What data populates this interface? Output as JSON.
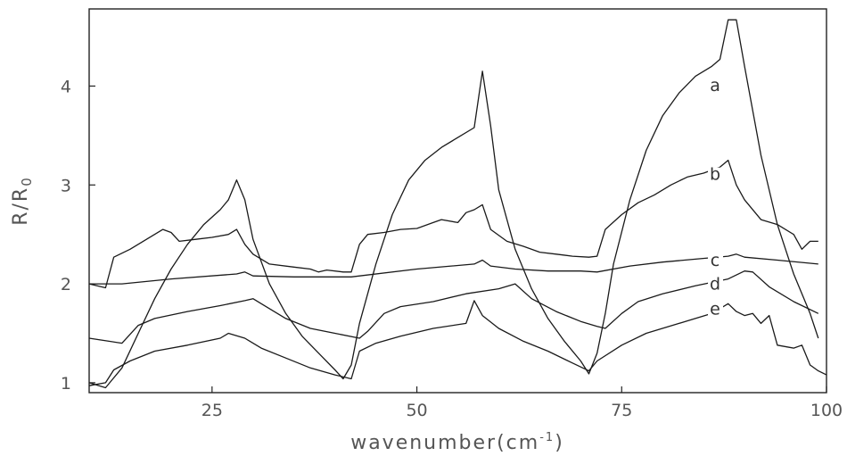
{
  "chart_data": {
    "type": "line",
    "xlabel": "wavenumber(cm",
    "xlabel_sup": "-1",
    "xlabel_tail": ")",
    "ylabel": "R/R",
    "ylabel_sub": "0",
    "xlim": [
      10,
      100
    ],
    "ylim": [
      0.9,
      4.78
    ],
    "x_ticks": [
      25,
      50,
      75,
      100
    ],
    "y_ticks": [
      1,
      2,
      3,
      4
    ],
    "grid": false,
    "legend": "none",
    "series": [
      {
        "name": "a",
        "points": [
          [
            10,
            1.0
          ],
          [
            12,
            0.95
          ],
          [
            14,
            1.15
          ],
          [
            16,
            1.5
          ],
          [
            18,
            1.85
          ],
          [
            20,
            2.15
          ],
          [
            22,
            2.4
          ],
          [
            24,
            2.6
          ],
          [
            26,
            2.75
          ],
          [
            27,
            2.85
          ],
          [
            28,
            3.05
          ],
          [
            29,
            2.85
          ],
          [
            30,
            2.45
          ],
          [
            32,
            2.0
          ],
          [
            34,
            1.7
          ],
          [
            36,
            1.47
          ],
          [
            38,
            1.3
          ],
          [
            40,
            1.13
          ],
          [
            41,
            1.04
          ],
          [
            42,
            1.18
          ],
          [
            43,
            1.6
          ],
          [
            45,
            2.2
          ],
          [
            47,
            2.7
          ],
          [
            49,
            3.05
          ],
          [
            51,
            3.25
          ],
          [
            53,
            3.38
          ],
          [
            55,
            3.48
          ],
          [
            57,
            3.58
          ],
          [
            58,
            4.15
          ],
          [
            59,
            3.6
          ],
          [
            60,
            2.95
          ],
          [
            62,
            2.35
          ],
          [
            64,
            1.95
          ],
          [
            66,
            1.65
          ],
          [
            68,
            1.42
          ],
          [
            70,
            1.22
          ],
          [
            71,
            1.09
          ],
          [
            72,
            1.3
          ],
          [
            73,
            1.7
          ],
          [
            74,
            2.2
          ],
          [
            76,
            2.85
          ],
          [
            78,
            3.35
          ],
          [
            80,
            3.7
          ],
          [
            82,
            3.93
          ],
          [
            84,
            4.1
          ],
          [
            86,
            4.2
          ],
          [
            87,
            4.27
          ],
          [
            88,
            4.67
          ],
          [
            89,
            4.67
          ],
          [
            90,
            4.2
          ],
          [
            92,
            3.3
          ],
          [
            94,
            2.6
          ],
          [
            96,
            2.1
          ],
          [
            98,
            1.7
          ],
          [
            99,
            1.45
          ]
        ]
      },
      {
        "name": "b",
        "points": [
          [
            10,
            2.0
          ],
          [
            12,
            1.96
          ],
          [
            13,
            2.27
          ],
          [
            15,
            2.35
          ],
          [
            17,
            2.45
          ],
          [
            19,
            2.55
          ],
          [
            20,
            2.52
          ],
          [
            21,
            2.43
          ],
          [
            23,
            2.45
          ],
          [
            25,
            2.47
          ],
          [
            27,
            2.5
          ],
          [
            28,
            2.55
          ],
          [
            29,
            2.4
          ],
          [
            30,
            2.3
          ],
          [
            32,
            2.2
          ],
          [
            35,
            2.17
          ],
          [
            37,
            2.15
          ],
          [
            38,
            2.12
          ],
          [
            39,
            2.14
          ],
          [
            41,
            2.12
          ],
          [
            42,
            2.12
          ],
          [
            43,
            2.4
          ],
          [
            44,
            2.5
          ],
          [
            46,
            2.52
          ],
          [
            48,
            2.55
          ],
          [
            50,
            2.56
          ],
          [
            52,
            2.62
          ],
          [
            53,
            2.65
          ],
          [
            55,
            2.62
          ],
          [
            56,
            2.72
          ],
          [
            57,
            2.75
          ],
          [
            58,
            2.8
          ],
          [
            59,
            2.55
          ],
          [
            61,
            2.43
          ],
          [
            63,
            2.38
          ],
          [
            65,
            2.32
          ],
          [
            67,
            2.3
          ],
          [
            69,
            2.28
          ],
          [
            71,
            2.27
          ],
          [
            72,
            2.28
          ],
          [
            73,
            2.55
          ],
          [
            75,
            2.7
          ],
          [
            77,
            2.82
          ],
          [
            79,
            2.9
          ],
          [
            81,
            3.0
          ],
          [
            83,
            3.08
          ],
          [
            85,
            3.12
          ],
          [
            87,
            3.18
          ],
          [
            88,
            3.25
          ],
          [
            89,
            3.0
          ],
          [
            90,
            2.85
          ],
          [
            92,
            2.65
          ],
          [
            94,
            2.6
          ],
          [
            96,
            2.5
          ],
          [
            97,
            2.35
          ],
          [
            98,
            2.43
          ],
          [
            99,
            2.43
          ]
        ]
      },
      {
        "name": "c",
        "points": [
          [
            10,
            2.0
          ],
          [
            14,
            2.0
          ],
          [
            20,
            2.05
          ],
          [
            28,
            2.1
          ],
          [
            29,
            2.12
          ],
          [
            30,
            2.08
          ],
          [
            35,
            2.07
          ],
          [
            42,
            2.07
          ],
          [
            50,
            2.15
          ],
          [
            57,
            2.2
          ],
          [
            58,
            2.24
          ],
          [
            59,
            2.18
          ],
          [
            62,
            2.15
          ],
          [
            66,
            2.13
          ],
          [
            70,
            2.13
          ],
          [
            72,
            2.12
          ],
          [
            76,
            2.18
          ],
          [
            80,
            2.22
          ],
          [
            84,
            2.25
          ],
          [
            88,
            2.28
          ],
          [
            89,
            2.3
          ],
          [
            90,
            2.27
          ],
          [
            94,
            2.24
          ],
          [
            99,
            2.2
          ]
        ]
      },
      {
        "name": "d",
        "points": [
          [
            10,
            1.45
          ],
          [
            14,
            1.4
          ],
          [
            16,
            1.58
          ],
          [
            18,
            1.65
          ],
          [
            22,
            1.72
          ],
          [
            26,
            1.78
          ],
          [
            29,
            1.83
          ],
          [
            30,
            1.85
          ],
          [
            31,
            1.8
          ],
          [
            34,
            1.65
          ],
          [
            37,
            1.55
          ],
          [
            40,
            1.5
          ],
          [
            43,
            1.45
          ],
          [
            44,
            1.52
          ],
          [
            46,
            1.7
          ],
          [
            48,
            1.77
          ],
          [
            52,
            1.82
          ],
          [
            56,
            1.9
          ],
          [
            60,
            1.95
          ],
          [
            62,
            2.0
          ],
          [
            64,
            1.85
          ],
          [
            67,
            1.72
          ],
          [
            70,
            1.62
          ],
          [
            72,
            1.57
          ],
          [
            73,
            1.55
          ],
          [
            75,
            1.7
          ],
          [
            77,
            1.82
          ],
          [
            80,
            1.9
          ],
          [
            84,
            1.98
          ],
          [
            88,
            2.05
          ],
          [
            90,
            2.13
          ],
          [
            91,
            2.12
          ],
          [
            93,
            1.97
          ],
          [
            96,
            1.82
          ],
          [
            99,
            1.7
          ]
        ]
      },
      {
        "name": "e",
        "points": [
          [
            10,
            0.97
          ],
          [
            12,
            1.0
          ],
          [
            13,
            1.13
          ],
          [
            15,
            1.22
          ],
          [
            18,
            1.32
          ],
          [
            22,
            1.38
          ],
          [
            26,
            1.45
          ],
          [
            27,
            1.5
          ],
          [
            29,
            1.45
          ],
          [
            31,
            1.35
          ],
          [
            34,
            1.25
          ],
          [
            37,
            1.15
          ],
          [
            40,
            1.08
          ],
          [
            42,
            1.04
          ],
          [
            43,
            1.32
          ],
          [
            45,
            1.4
          ],
          [
            48,
            1.47
          ],
          [
            52,
            1.55
          ],
          [
            56,
            1.6
          ],
          [
            57,
            1.83
          ],
          [
            58,
            1.68
          ],
          [
            60,
            1.55
          ],
          [
            63,
            1.42
          ],
          [
            66,
            1.32
          ],
          [
            69,
            1.2
          ],
          [
            71,
            1.12
          ],
          [
            72,
            1.22
          ],
          [
            75,
            1.38
          ],
          [
            78,
            1.5
          ],
          [
            82,
            1.6
          ],
          [
            86,
            1.7
          ],
          [
            88,
            1.8
          ],
          [
            89,
            1.72
          ],
          [
            90,
            1.68
          ],
          [
            91,
            1.7
          ],
          [
            92,
            1.6
          ],
          [
            93,
            1.68
          ],
          [
            94,
            1.38
          ],
          [
            96,
            1.35
          ],
          [
            97,
            1.38
          ],
          [
            98,
            1.18
          ],
          [
            99,
            1.12
          ],
          [
            100,
            1.08
          ]
        ]
      }
    ],
    "series_label_points": [
      {
        "name": "a",
        "x": 86.4,
        "y": 3.95
      },
      {
        "name": "b",
        "x": 86.4,
        "y": 3.05
      },
      {
        "name": "c",
        "x": 86.4,
        "y": 2.18
      },
      {
        "name": "d",
        "x": 86.4,
        "y": 1.94
      },
      {
        "name": "e",
        "x": 86.4,
        "y": 1.69
      }
    ]
  }
}
